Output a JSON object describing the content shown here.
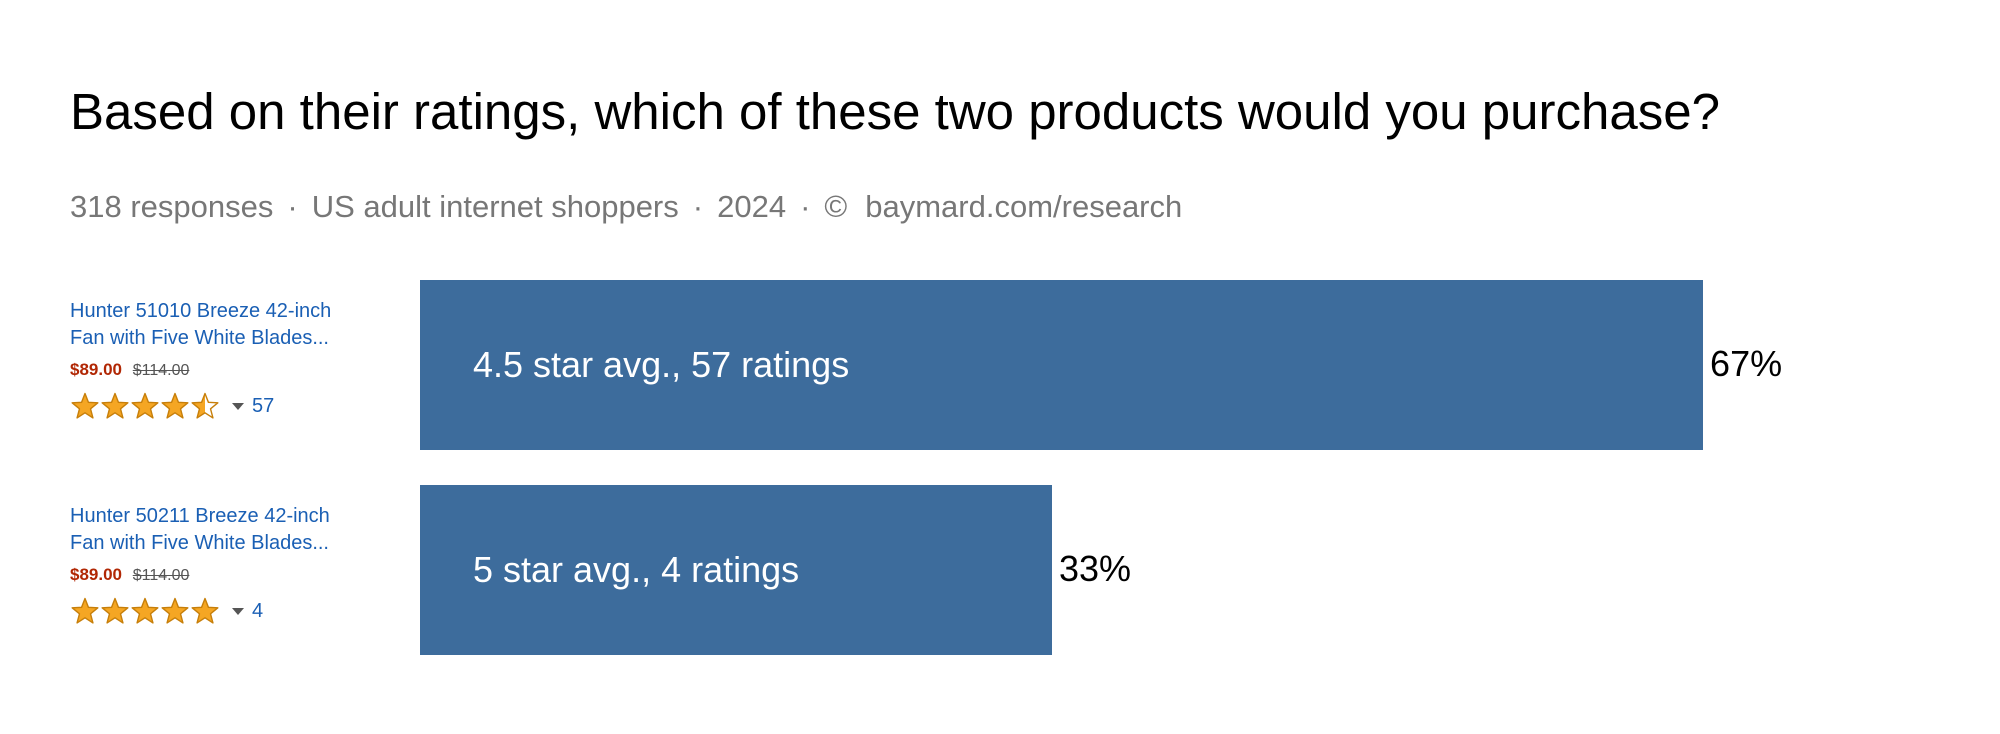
{
  "header": {
    "title": "Based on their ratings, which of these two products would you purchase?",
    "meta": [
      "318 responses",
      "US adult internet shoppers",
      "2024",
      "©",
      "baymard.com/research"
    ],
    "separator": "·"
  },
  "products": [
    {
      "name_line1": "Hunter 51010 Breeze 42-inch",
      "name_line2": "Fan with Five White Blades...",
      "price": "$89.00",
      "old_price": "$114.00",
      "rating": 4.5,
      "rating_count": "57"
    },
    {
      "name_line1": "Hunter 50211 Breeze 42-inch",
      "name_line2": "Fan with Five White Blades...",
      "price": "$89.00",
      "old_price": "$114.00",
      "rating": 5,
      "rating_count": "4"
    }
  ],
  "chart_data": {
    "type": "bar",
    "orientation": "horizontal",
    "title": "Based on their ratings, which of these two products would you purchase?",
    "categories": [
      "4.5 star avg., 57 ratings",
      "5 star avg., 4 ratings"
    ],
    "values": [
      67,
      33
    ],
    "value_labels": [
      "67%",
      "33%"
    ],
    "unit": "%",
    "xlim": [
      0,
      100
    ],
    "grid": false,
    "legend": "none",
    "bar_color": "#3d6c9c"
  },
  "colors": {
    "star": "#f5a623",
    "star_outline": "#c77f0a",
    "link": "#1a5fb4",
    "price": "#b12704"
  }
}
